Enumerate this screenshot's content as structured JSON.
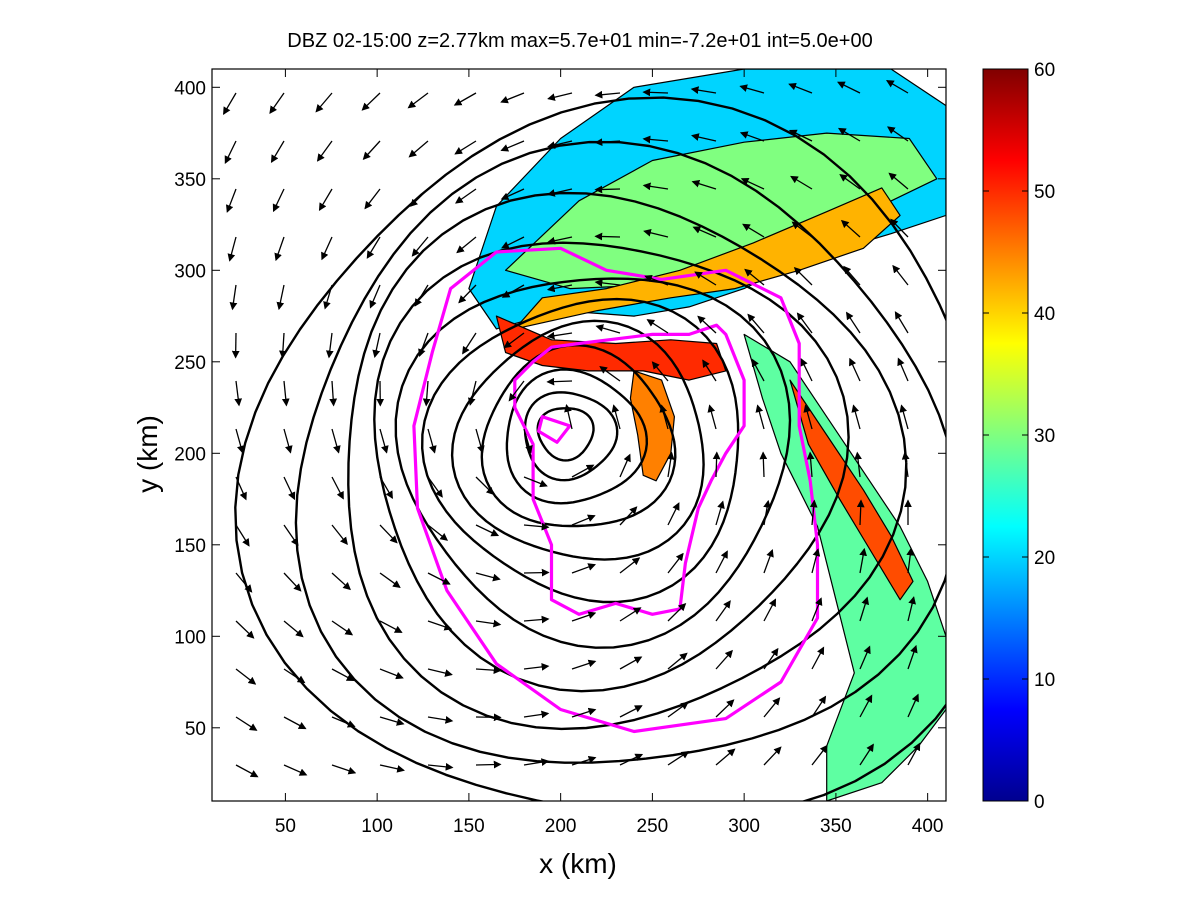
{
  "chart_data": {
    "type": "heatmap",
    "title": "DBZ 02-15:00 z=2.77km max=5.7e+01 min=-7.2e+01 int=5.0e+00",
    "xlabel": "x (km)",
    "ylabel": "y (km)",
    "xlim": [
      10,
      410
    ],
    "ylim": [
      10,
      410
    ],
    "xticks": [
      50,
      100,
      150,
      200,
      250,
      300,
      350,
      400
    ],
    "yticks": [
      50,
      100,
      150,
      200,
      250,
      300,
      350,
      400
    ],
    "grid": false,
    "colorbar": {
      "min": 0,
      "max": 60,
      "ticks": [
        0,
        10,
        20,
        30,
        40,
        50,
        60
      ],
      "colormap": "jet"
    },
    "vortex_center": [
      200,
      213
    ],
    "pressure_contour_radii_km": [
      15,
      25,
      38,
      52,
      68,
      86,
      106,
      128,
      152,
      178,
      206
    ],
    "magenta_contours": [
      [
        [
          190,
          220
        ],
        [
          205,
          215
        ],
        [
          198,
          206
        ],
        [
          188,
          212
        ]
      ],
      [
        [
          175,
          240
        ],
        [
          175,
          225
        ],
        [
          185,
          205
        ],
        [
          185,
          175
        ],
        [
          195,
          150
        ],
        [
          195,
          120
        ],
        [
          210,
          112
        ],
        [
          230,
          118
        ],
        [
          250,
          112
        ],
        [
          265,
          115
        ],
        [
          268,
          140
        ],
        [
          275,
          170
        ],
        [
          282,
          185
        ],
        [
          290,
          200
        ],
        [
          300,
          215
        ],
        [
          300,
          240
        ],
        [
          290,
          265
        ],
        [
          285,
          270
        ],
        [
          270,
          265
        ],
        [
          250,
          265
        ],
        [
          210,
          260
        ],
        [
          195,
          258
        ],
        [
          185,
          250
        ]
      ],
      [
        [
          130,
          255
        ],
        [
          120,
          215
        ],
        [
          122,
          170
        ],
        [
          138,
          125
        ],
        [
          165,
          85
        ],
        [
          200,
          60
        ],
        [
          240,
          48
        ],
        [
          290,
          55
        ],
        [
          320,
          75
        ],
        [
          340,
          110
        ],
        [
          340,
          150
        ],
        [
          336,
          185
        ],
        [
          330,
          215
        ],
        [
          330,
          260
        ],
        [
          320,
          285
        ],
        [
          290,
          300
        ],
        [
          255,
          295
        ],
        [
          225,
          300
        ],
        [
          200,
          312
        ],
        [
          165,
          310
        ],
        [
          140,
          290
        ]
      ]
    ],
    "rain_bands": [
      {
        "points": [
          [
            150,
            290
          ],
          [
            165,
            335
          ],
          [
            200,
            372
          ],
          [
            240,
            400
          ],
          [
            300,
            410
          ],
          [
            380,
            410
          ],
          [
            410,
            390
          ],
          [
            410,
            330
          ],
          [
            380,
            320
          ],
          [
            330,
            305
          ],
          [
            300,
            290
          ],
          [
            270,
            280
          ],
          [
            240,
            275
          ],
          [
            200,
            278
          ],
          [
            165,
            268
          ]
        ],
        "dbz": 20
      },
      {
        "points": [
          [
            170,
            300
          ],
          [
            210,
            338
          ],
          [
            250,
            360
          ],
          [
            300,
            370
          ],
          [
            345,
            375
          ],
          [
            390,
            372
          ],
          [
            405,
            350
          ],
          [
            370,
            333
          ],
          [
            330,
            320
          ],
          [
            290,
            305
          ],
          [
            250,
            292
          ],
          [
            205,
            290
          ]
        ],
        "dbz": 30
      },
      {
        "points": [
          [
            175,
            268
          ],
          [
            220,
            278
          ],
          [
            260,
            285
          ],
          [
            295,
            290
          ],
          [
            330,
            300
          ],
          [
            365,
            312
          ],
          [
            385,
            330
          ],
          [
            375,
            345
          ],
          [
            345,
            332
          ],
          [
            305,
            315
          ],
          [
            265,
            300
          ],
          [
            225,
            290
          ],
          [
            190,
            285
          ]
        ],
        "dbz": 42
      },
      {
        "points": [
          [
            165,
            275
          ],
          [
            195,
            262
          ],
          [
            230,
            260
          ],
          [
            260,
            262
          ],
          [
            285,
            260
          ],
          [
            290,
            245
          ],
          [
            270,
            240
          ],
          [
            245,
            245
          ],
          [
            215,
            245
          ],
          [
            190,
            248
          ],
          [
            170,
            255
          ]
        ],
        "dbz": 50
      },
      {
        "points": [
          [
            300,
            265
          ],
          [
            325,
            250
          ],
          [
            345,
            220
          ],
          [
            365,
            190
          ],
          [
            385,
            160
          ],
          [
            400,
            130
          ],
          [
            410,
            100
          ],
          [
            410,
            60
          ],
          [
            395,
            40
          ],
          [
            375,
            20
          ],
          [
            345,
            10
          ],
          [
            345,
            40
          ],
          [
            360,
            80
          ],
          [
            350,
            120
          ],
          [
            340,
            160
          ],
          [
            320,
            200
          ],
          [
            310,
            230
          ]
        ],
        "dbz": 28
      },
      {
        "points": [
          [
            325,
            240
          ],
          [
            345,
            210
          ],
          [
            365,
            180
          ],
          [
            380,
            155
          ],
          [
            392,
            130
          ],
          [
            385,
            120
          ],
          [
            370,
            145
          ],
          [
            352,
            175
          ],
          [
            335,
            205
          ]
        ],
        "dbz": 48
      },
      {
        "points": [
          [
            240,
            245
          ],
          [
            255,
            240
          ],
          [
            262,
            220
          ],
          [
            260,
            200
          ],
          [
            252,
            185
          ],
          [
            245,
            188
          ],
          [
            242,
            210
          ],
          [
            238,
            230
          ]
        ],
        "dbz": 45
      }
    ]
  }
}
